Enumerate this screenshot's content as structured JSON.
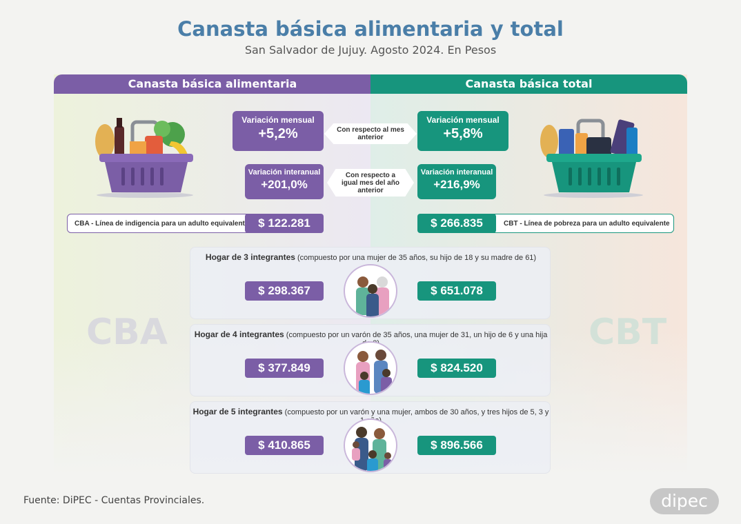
{
  "title": "Canasta básica alimentaria y total",
  "subtitle": "San Salvador de Jujuy. Agosto 2024. En Pesos",
  "cba": {
    "header": "Canasta básica alimentaria",
    "monthly_label": "Variación mensual",
    "monthly_value": "+5,2%",
    "yearly_label": "Variación interanual",
    "yearly_value": "+201,0%",
    "line_label": "CBA - Línea de indigencia para un adulto equivalente",
    "line_value": "$ 122.281",
    "ghost": "CBA"
  },
  "cbt": {
    "header": "Canasta básica total",
    "monthly_label": "Variación mensual",
    "monthly_value": "+5,8%",
    "yearly_label": "Variación interanual",
    "yearly_value": "+216,9%",
    "line_label": "CBT - Línea de pobreza para un adulto equivalente",
    "line_value": "$ 266.835",
    "ghost": "CBT"
  },
  "arrows": {
    "monthly": "Con respecto al mes anterior",
    "yearly": "Con respecto a igual mes del año anterior"
  },
  "households": [
    {
      "title": "Hogar de 3 integrantes",
      "detail": "(compuesto por una mujer de 35 años, su hijo de 18 y su madre de 61)",
      "cba": "$ 298.367",
      "cbt": "$ 651.078"
    },
    {
      "title": "Hogar de 4 integrantes",
      "detail": "(compuesto por un varón de 35 años, una mujer de 31, un hijo de 6 y una hija de 8)",
      "cba": "$ 377.849",
      "cbt": "$ 824.520"
    },
    {
      "title": "Hogar de 5 integrantes",
      "detail": "(compuesto por un varón y una mujer, ambos de 30 años, y tres hijos de 5, 3 y 1 año)",
      "cba": "$ 410.865",
      "cbt": "$ 896.566"
    }
  ],
  "source": "Fuente: DiPEC - Cuentas Provinciales.",
  "logo": "dipec",
  "colors": {
    "cba": "#7b5ea6",
    "cbt": "#17957d",
    "title": "#4a7ea8"
  }
}
